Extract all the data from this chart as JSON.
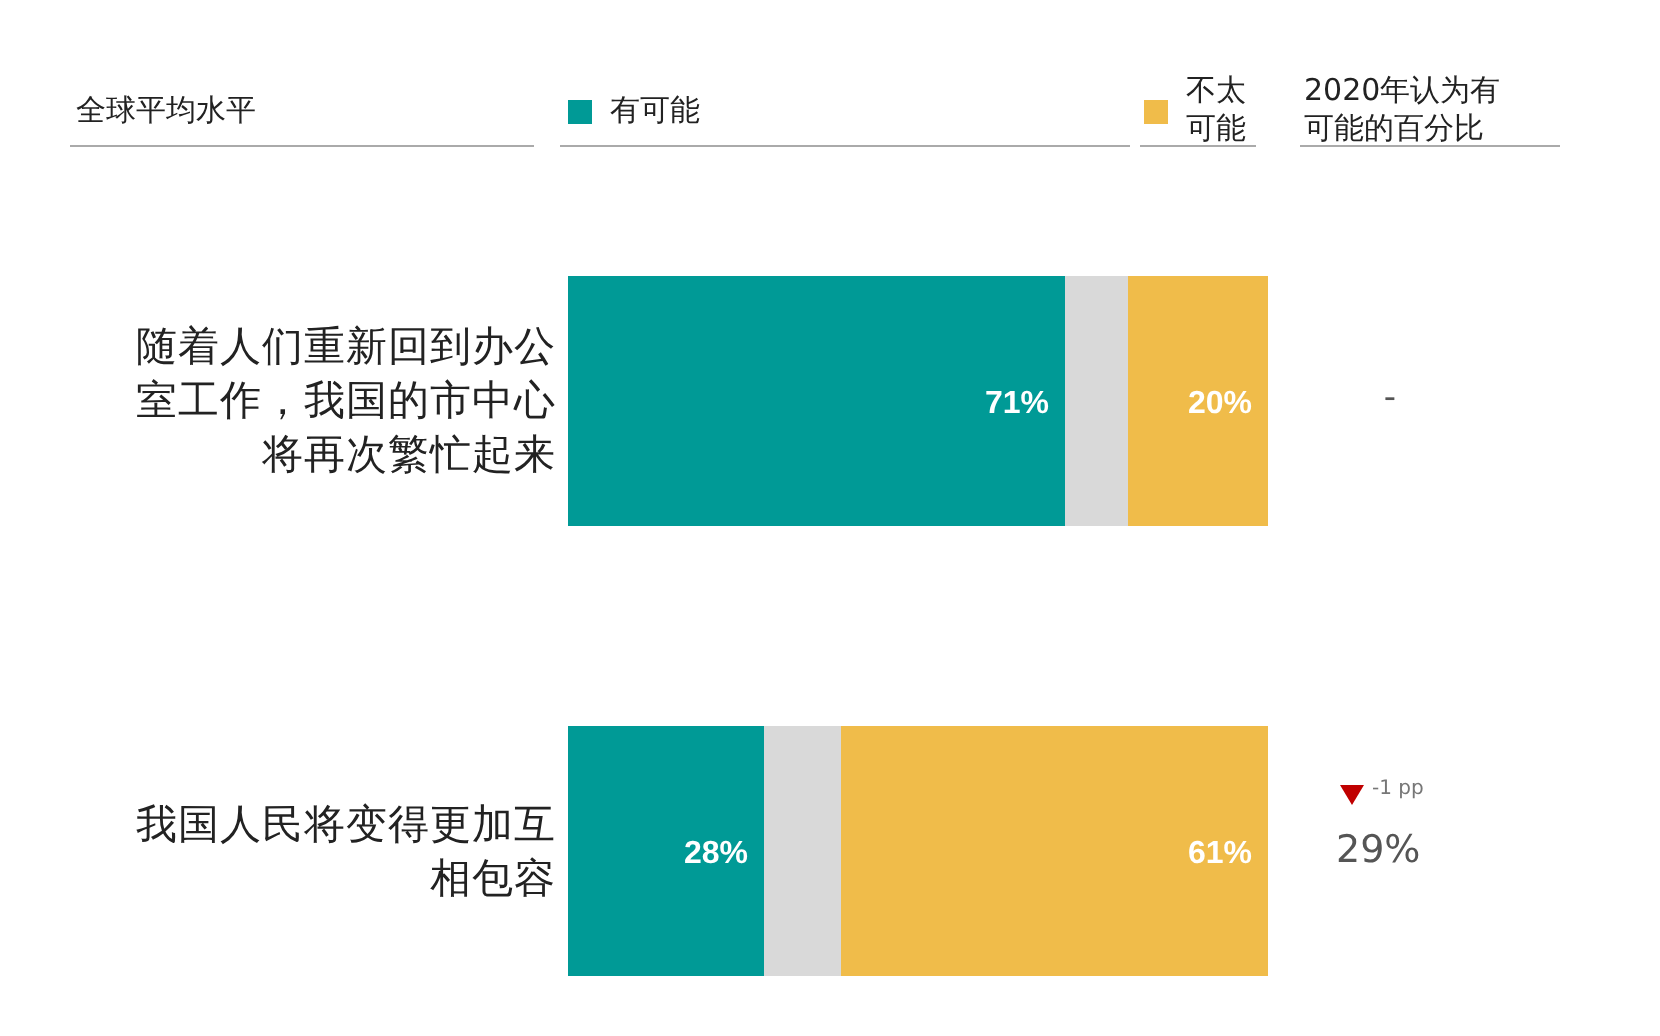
{
  "chart_data": {
    "type": "bar",
    "orientation": "horizontal",
    "stacked": true,
    "title": "全球平均水平",
    "legend": "top",
    "categories": [
      "随着人们重新回到办公室工作，我国的市中心将再次繁忙起来",
      "我国人民将变得更加互相包容"
    ],
    "xlim": [
      0,
      100
    ],
    "series": [
      {
        "name": "有可能",
        "color": "#009a96",
        "values": [
          71,
          28
        ],
        "value_labels": [
          "71%",
          "28%"
        ]
      },
      {
        "color": "#d9d9d9",
        "values": [
          9,
          11
        ]
      },
      {
        "name": "不太可能",
        "color": "#f0bc4a",
        "values": [
          20,
          61
        ],
        "value_labels": [
          "20%",
          "61%"
        ]
      }
    ],
    "annotations": [
      "2020年认为有可能的百分比",
      "-",
      "-1 pp",
      "29%"
    ]
  }
}
